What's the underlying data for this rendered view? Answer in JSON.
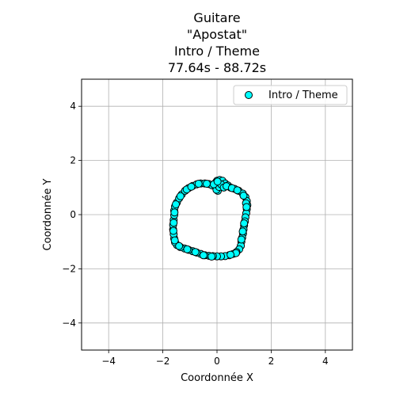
{
  "chart_data": {
    "type": "scatter",
    "title_lines": [
      "Guitare",
      "\"Apostat\"",
      "Intro / Theme",
      "77.64s - 88.72s"
    ],
    "xlabel": "Coordonnée X",
    "ylabel": "Coordonnée Y",
    "xlim": [
      -5,
      5
    ],
    "ylim": [
      -5,
      5
    ],
    "xticks": [
      -4,
      -2,
      0,
      2,
      4
    ],
    "yticks": [
      -4,
      -2,
      0,
      2,
      4
    ],
    "grid": true,
    "legend_position": "top-right",
    "series": [
      {
        "name": "Intro / Theme",
        "color": "#00ffff",
        "edge_color": "#000000",
        "marker": "circle",
        "points": [
          [
            0.0,
            1.25
          ],
          [
            0.1,
            1.28
          ],
          [
            0.2,
            1.25
          ],
          [
            0.3,
            1.15
          ],
          [
            0.4,
            1.08
          ],
          [
            0.5,
            1.0
          ],
          [
            0.65,
            0.95
          ],
          [
            0.8,
            0.88
          ],
          [
            0.95,
            0.78
          ],
          [
            1.05,
            0.65
          ],
          [
            1.1,
            0.5
          ],
          [
            1.12,
            0.35
          ],
          [
            1.1,
            0.2
          ],
          [
            1.08,
            0.05
          ],
          [
            1.05,
            -0.1
          ],
          [
            1.03,
            -0.25
          ],
          [
            1.0,
            -0.4
          ],
          [
            0.98,
            -0.55
          ],
          [
            0.96,
            -0.7
          ],
          [
            0.93,
            -0.85
          ],
          [
            0.9,
            -1.0
          ],
          [
            0.88,
            -1.15
          ],
          [
            0.82,
            -1.28
          ],
          [
            0.72,
            -1.38
          ],
          [
            0.6,
            -1.45
          ],
          [
            0.45,
            -1.5
          ],
          [
            0.3,
            -1.53
          ],
          [
            0.15,
            -1.54
          ],
          [
            0.0,
            -1.54
          ],
          [
            -0.15,
            -1.53
          ],
          [
            -0.3,
            -1.52
          ],
          [
            -0.45,
            -1.5
          ],
          [
            -0.6,
            -1.45
          ],
          [
            -0.75,
            -1.4
          ],
          [
            -0.9,
            -1.35
          ],
          [
            -1.05,
            -1.3
          ],
          [
            -1.2,
            -1.25
          ],
          [
            -1.35,
            -1.2
          ],
          [
            -1.48,
            -1.12
          ],
          [
            -1.55,
            -1.02
          ],
          [
            -1.58,
            -0.88
          ],
          [
            -1.6,
            -0.72
          ],
          [
            -1.62,
            -0.55
          ],
          [
            -1.62,
            -0.38
          ],
          [
            -1.6,
            -0.2
          ],
          [
            -1.58,
            -0.02
          ],
          [
            -1.58,
            0.15
          ],
          [
            -1.55,
            0.3
          ],
          [
            -1.48,
            0.45
          ],
          [
            -1.4,
            0.6
          ],
          [
            -1.3,
            0.75
          ],
          [
            -1.18,
            0.88
          ],
          [
            -1.05,
            0.98
          ],
          [
            -0.9,
            1.06
          ],
          [
            -0.75,
            1.12
          ],
          [
            -0.6,
            1.15
          ],
          [
            -0.45,
            1.15
          ],
          [
            -0.3,
            1.13
          ],
          [
            -0.18,
            1.08
          ],
          [
            -0.1,
            1.1
          ],
          [
            -0.05,
            1.18
          ],
          [
            0.05,
            0.95
          ],
          [
            0.03,
            0.88
          ],
          [
            -0.02,
            0.92
          ],
          [
            0.08,
            1.02
          ],
          [
            0.15,
            1.12
          ],
          [
            0.25,
            1.0
          ],
          [
            0.35,
            1.05
          ],
          [
            0.55,
            0.98
          ],
          [
            0.75,
            0.9
          ],
          [
            0.98,
            0.7
          ],
          [
            1.07,
            0.42
          ],
          [
            1.09,
            0.28
          ],
          [
            1.0,
            -0.32
          ],
          [
            0.95,
            -0.62
          ],
          [
            0.9,
            -0.92
          ],
          [
            0.7,
            -1.42
          ],
          [
            0.5,
            -1.48
          ],
          [
            -0.2,
            -1.55
          ],
          [
            -0.5,
            -1.5
          ],
          [
            -0.8,
            -1.38
          ],
          [
            -1.1,
            -1.28
          ],
          [
            -1.4,
            -1.16
          ],
          [
            -1.56,
            -0.95
          ],
          [
            -1.61,
            -0.6
          ],
          [
            -1.6,
            -0.3
          ],
          [
            -1.57,
            0.08
          ],
          [
            -1.52,
            0.38
          ],
          [
            -1.35,
            0.68
          ],
          [
            -1.12,
            0.93
          ],
          [
            -0.95,
            1.03
          ],
          [
            -0.68,
            1.14
          ],
          [
            -0.38,
            1.14
          ],
          [
            -0.12,
            1.12
          ],
          [
            0.02,
            1.22
          ]
        ]
      }
    ]
  }
}
